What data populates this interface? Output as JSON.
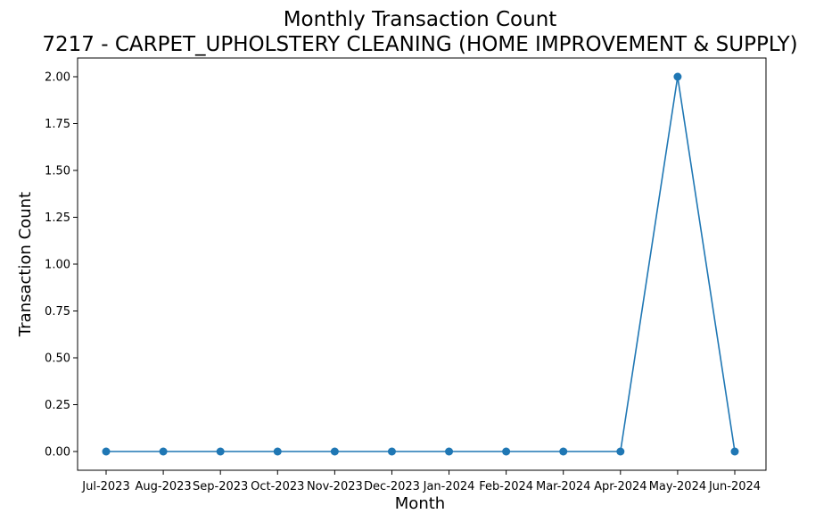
{
  "chart_data": {
    "type": "line",
    "title": "Monthly Transaction Count",
    "subtitle": "7217 - CARPET_UPHOLSTERY CLEANING (HOME IMPROVEMENT & SUPPLY)",
    "xlabel": "Month",
    "ylabel": "Transaction Count",
    "categories": [
      "Jul-2023",
      "Aug-2023",
      "Sep-2023",
      "Oct-2023",
      "Nov-2023",
      "Dec-2023",
      "Jan-2024",
      "Feb-2024",
      "Mar-2024",
      "Apr-2024",
      "May-2024",
      "Jun-2024"
    ],
    "series": [
      {
        "values": [
          0,
          0,
          0,
          0,
          0,
          0,
          0,
          0,
          0,
          0,
          2,
          0
        ]
      }
    ],
    "ylim": [
      -0.1,
      2.1
    ],
    "yticks": [
      "0.00",
      "0.25",
      "0.50",
      "0.75",
      "1.00",
      "1.25",
      "1.50",
      "1.75",
      "2.00"
    ],
    "grid": false,
    "line_color": "#1f77b4",
    "marker": "circle"
  }
}
